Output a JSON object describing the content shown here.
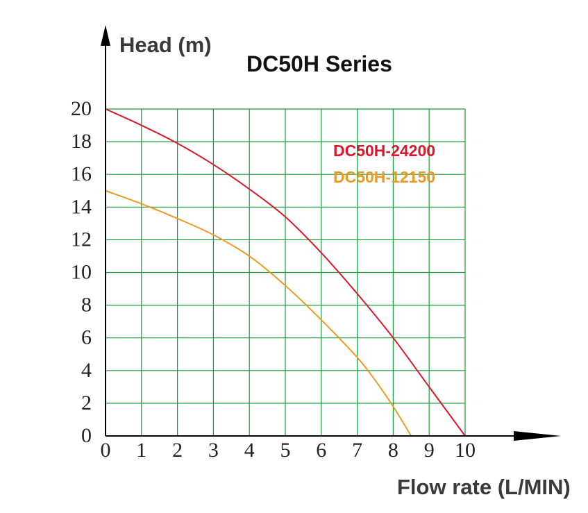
{
  "chart_data": {
    "type": "line",
    "title": "DC50H Series",
    "xlabel": "Flow rate (L/MIN)",
    "ylabel": "Head (m)",
    "xlim": [
      0,
      10
    ],
    "ylim": [
      0,
      20
    ],
    "xticks": [
      0,
      1,
      2,
      3,
      4,
      5,
      6,
      7,
      8,
      9,
      10
    ],
    "yticks": [
      0,
      2,
      4,
      6,
      8,
      10,
      12,
      14,
      16,
      18,
      20
    ],
    "grid": true,
    "grid_color": "#1a9a3c",
    "legend_position": "top-right",
    "series": [
      {
        "name": "DC50H-24200",
        "color": "#d7192d",
        "x": [
          0,
          1,
          2,
          3,
          4,
          5,
          6,
          7,
          8,
          9,
          10
        ],
        "y": [
          20,
          19.0,
          17.9,
          16.6,
          15.1,
          13.4,
          11.2,
          8.7,
          6.0,
          3.0,
          0
        ]
      },
      {
        "name": "DC50H-12150",
        "color": "#eb9a23",
        "x": [
          0,
          1,
          2,
          3,
          4,
          5,
          6,
          7,
          7.5,
          8,
          8.5
        ],
        "y": [
          15,
          14.2,
          13.3,
          12.3,
          11.0,
          9.2,
          7.1,
          4.8,
          3.4,
          1.8,
          0
        ]
      }
    ]
  }
}
